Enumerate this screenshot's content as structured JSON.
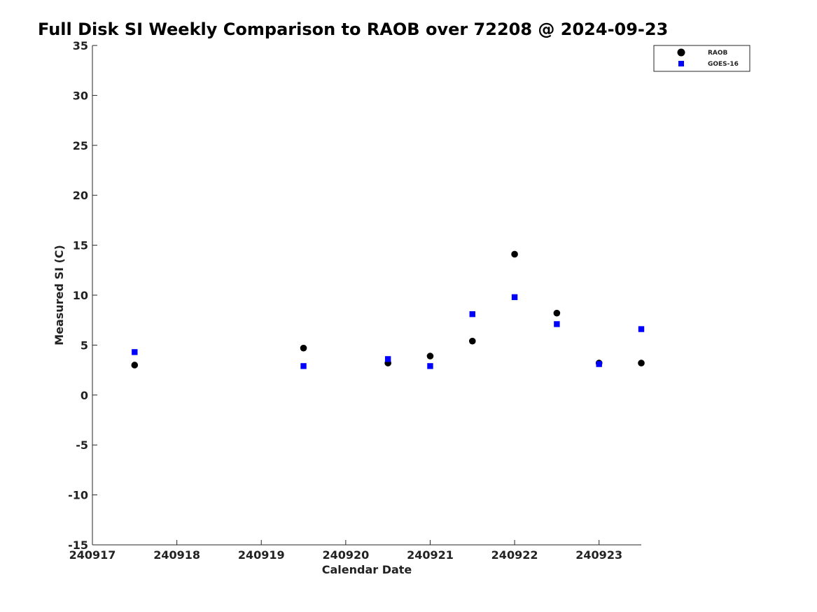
{
  "chart_data": {
    "type": "scatter",
    "title": "Full Disk SI Weekly Comparison to RAOB over 72208 @ 2024-09-23",
    "xlabel": "Calendar Date",
    "ylabel": "Measured SI (C)",
    "xlim": [
      240917,
      240923.5
    ],
    "ylim": [
      -15,
      35
    ],
    "x_ticks": [
      240917,
      240918,
      240919,
      240920,
      240921,
      240922,
      240923
    ],
    "x_tick_labels": [
      "240917",
      "240918",
      "240919",
      "240920",
      "240921",
      "240922",
      "240923"
    ],
    "y_ticks": [
      -15,
      -10,
      -5,
      0,
      5,
      10,
      15,
      20,
      25,
      30,
      35
    ],
    "y_tick_labels": [
      "-15",
      "-10",
      "-5",
      "0",
      "5",
      "10",
      "15",
      "20",
      "25",
      "30",
      "35"
    ],
    "grid": false,
    "legend_position": "top-right",
    "series": [
      {
        "name": "RAOB",
        "marker": "circle",
        "color": "#000000",
        "x": [
          240917.5,
          240919.5,
          240920.5,
          240921.0,
          240921.5,
          240922.0,
          240922.5,
          240923.0,
          240923.5
        ],
        "y": [
          3.0,
          4.7,
          3.2,
          3.9,
          5.4,
          14.1,
          8.2,
          3.2,
          3.2
        ]
      },
      {
        "name": "GOES-16",
        "marker": "square",
        "color": "#0000ff",
        "x": [
          240917.5,
          240919.5,
          240920.5,
          240921.0,
          240921.5,
          240922.0,
          240922.5,
          240923.0,
          240923.5
        ],
        "y": [
          4.3,
          2.9,
          3.6,
          2.9,
          8.1,
          9.8,
          7.1,
          3.1,
          6.6
        ]
      }
    ]
  }
}
